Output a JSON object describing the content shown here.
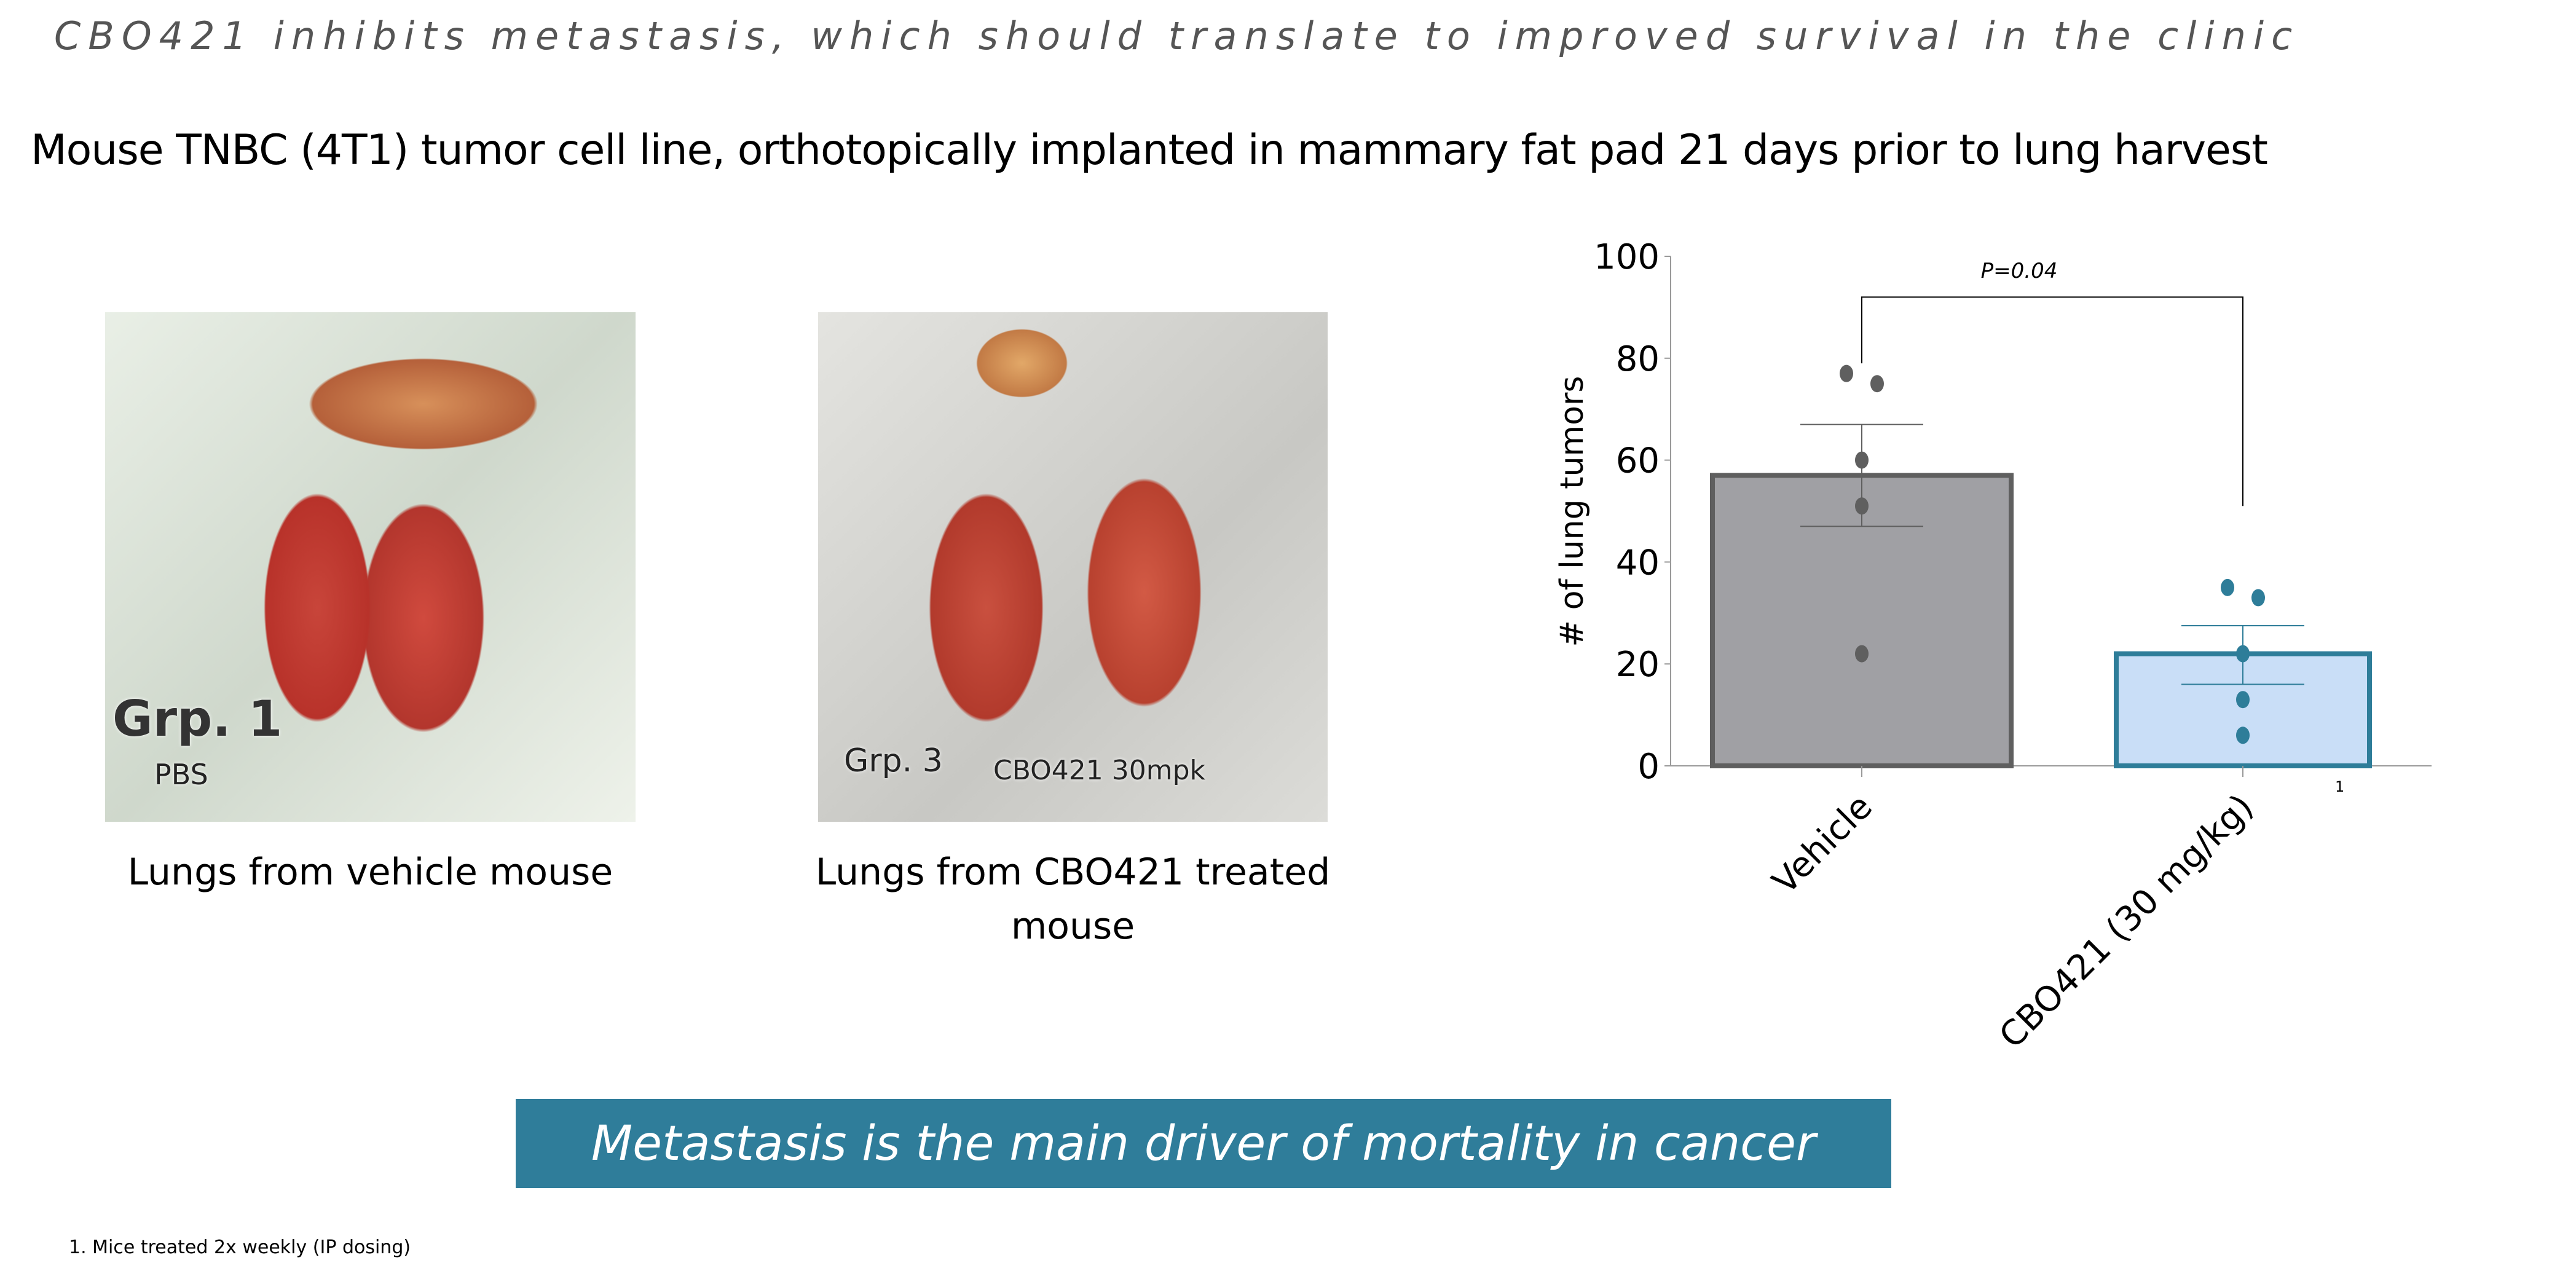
{
  "slide": {
    "title": "CBO421 inhibits metastasis, which should translate to improved survival in the clinic",
    "subtitle": "Mouse TNBC (4T1) tumor cell line, orthotopically implanted in mammary fat pad 21 days prior to lung harvest"
  },
  "photos": [
    {
      "label_main": "Grp. 1",
      "label_sub": "PBS",
      "caption": "Lungs from vehicle mouse"
    },
    {
      "label_main": "Grp. 3",
      "label_sub": "CBO421 30mpk",
      "caption_line1": "Lungs from CBO421 treated",
      "caption_line2": "mouse"
    }
  ],
  "banner": {
    "text": "Metastasis is the main driver of mortality in cancer",
    "color": "#2f7d9a"
  },
  "footnote": "1.  Mice treated 2x weekly (IP dosing)",
  "chart_data": {
    "type": "bar",
    "ylabel": "# of lung tumors",
    "ylim": [
      0,
      100
    ],
    "yticks": [
      0,
      20,
      40,
      60,
      80,
      100
    ],
    "categories": [
      "Vehicle",
      "CBO421 (30 mg/kg)"
    ],
    "category_superscript": [
      "",
      "1"
    ],
    "values": [
      57,
      22
    ],
    "error": [
      [
        47,
        67
      ],
      [
        16,
        27.5
      ]
    ],
    "points": [
      [
        77,
        75,
        60,
        51,
        22
      ],
      [
        35,
        33,
        22,
        13,
        6
      ]
    ],
    "colors": {
      "fill": [
        "#a0a0a4",
        "#c9def7"
      ],
      "stroke": [
        "#5f5f5f",
        "#2e7d99"
      ],
      "points": [
        "#5f5f5f",
        "#2e7d99"
      ]
    },
    "annotation": "P=0.04",
    "grid": false
  }
}
